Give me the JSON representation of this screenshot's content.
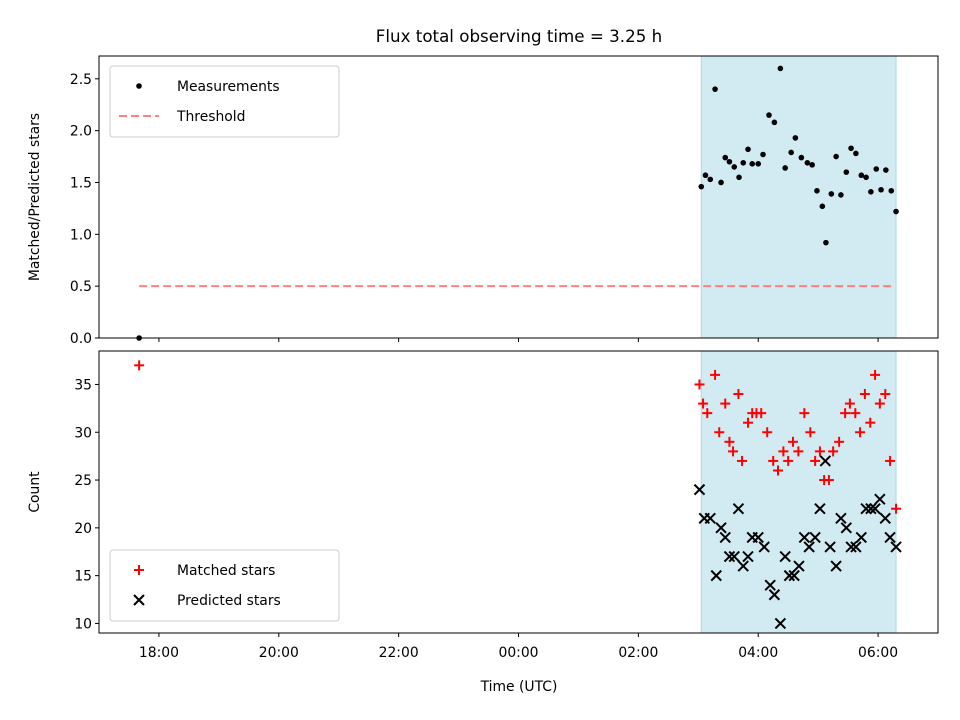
{
  "chart_data": {
    "title": "Flux total observing time = 3.25 h",
    "xlabel": "Time (UTC)",
    "x_unit": "hours after 17:00 UTC",
    "xlim": [
      17.0,
      31.0
    ],
    "x_ticks": [
      {
        "value": 18,
        "label": "18:00"
      },
      {
        "value": 20,
        "label": "20:00"
      },
      {
        "value": 22,
        "label": "22:00"
      },
      {
        "value": 24,
        "label": "00:00"
      },
      {
        "value": 26,
        "label": "02:00"
      },
      {
        "value": 28,
        "label": "04:00"
      },
      {
        "value": 30,
        "label": "06:00"
      }
    ],
    "shaded_span": {
      "x": [
        27.05,
        30.3
      ],
      "color": "#add8e6"
    },
    "panels": [
      {
        "id": "ratio",
        "type": "scatter",
        "ylabel": "Matched/Predicted stars",
        "ylim": [
          0,
          2.72
        ],
        "y_ticks": [
          0.0,
          0.5,
          1.0,
          1.5,
          2.0,
          2.5
        ],
        "y_tick_labels": [
          "0.0",
          "0.5",
          "1.0",
          "1.5",
          "2.0",
          "2.5"
        ],
        "legend": {
          "position": "top-left",
          "entries": [
            "Measurements",
            "Threshold"
          ]
        },
        "threshold": {
          "name": "Threshold",
          "value": 0.5,
          "x": [
            17.67,
            30.25
          ],
          "color": "#ff8080",
          "style": "dashed"
        },
        "series": [
          {
            "name": "Measurements",
            "marker": "dot",
            "color": "#000000",
            "points": [
              [
                17.67,
                0.0
              ],
              [
                27.05,
                1.46
              ],
              [
                27.12,
                1.57
              ],
              [
                27.2,
                1.53
              ],
              [
                27.28,
                2.4
              ],
              [
                27.38,
                1.5
              ],
              [
                27.45,
                1.74
              ],
              [
                27.52,
                1.7
              ],
              [
                27.6,
                1.65
              ],
              [
                27.68,
                1.55
              ],
              [
                27.75,
                1.69
              ],
              [
                27.83,
                1.82
              ],
              [
                27.9,
                1.68
              ],
              [
                28.0,
                1.68
              ],
              [
                28.08,
                1.77
              ],
              [
                28.18,
                2.15
              ],
              [
                28.27,
                2.08
              ],
              [
                28.37,
                2.6
              ],
              [
                28.45,
                1.64
              ],
              [
                28.55,
                1.79
              ],
              [
                28.62,
                1.93
              ],
              [
                28.72,
                1.74
              ],
              [
                28.82,
                1.69
              ],
              [
                28.9,
                1.67
              ],
              [
                28.98,
                1.42
              ],
              [
                29.07,
                1.27
              ],
              [
                29.13,
                0.92
              ],
              [
                29.22,
                1.39
              ],
              [
                29.3,
                1.75
              ],
              [
                29.38,
                1.38
              ],
              [
                29.47,
                1.6
              ],
              [
                29.55,
                1.83
              ],
              [
                29.63,
                1.78
              ],
              [
                29.72,
                1.57
              ],
              [
                29.8,
                1.55
              ],
              [
                29.88,
                1.41
              ],
              [
                29.97,
                1.63
              ],
              [
                30.05,
                1.43
              ],
              [
                30.13,
                1.62
              ],
              [
                30.22,
                1.42
              ],
              [
                30.3,
                1.22
              ]
            ]
          }
        ]
      },
      {
        "id": "counts",
        "type": "scatter",
        "ylabel": "Count",
        "ylim": [
          9.0,
          38.5
        ],
        "y_ticks": [
          10,
          15,
          20,
          25,
          30,
          35
        ],
        "y_tick_labels": [
          "10",
          "15",
          "20",
          "25",
          "30",
          "35"
        ],
        "legend": {
          "position": "bottom-left",
          "entries": [
            "Matched stars",
            "Predicted stars"
          ]
        },
        "series": [
          {
            "name": "Matched stars",
            "marker": "plus",
            "color": "#ff0000",
            "points": [
              [
                17.67,
                37
              ],
              [
                27.02,
                35
              ],
              [
                27.08,
                33
              ],
              [
                27.15,
                32
              ],
              [
                27.28,
                36
              ],
              [
                27.35,
                30
              ],
              [
                27.45,
                33
              ],
              [
                27.52,
                29
              ],
              [
                27.58,
                28
              ],
              [
                27.67,
                34
              ],
              [
                27.73,
                27
              ],
              [
                27.83,
                31
              ],
              [
                27.9,
                32
              ],
              [
                27.97,
                32
              ],
              [
                28.05,
                32
              ],
              [
                28.15,
                30
              ],
              [
                28.25,
                27
              ],
              [
                28.33,
                26
              ],
              [
                28.42,
                28
              ],
              [
                28.5,
                27
              ],
              [
                28.58,
                29
              ],
              [
                28.67,
                28
              ],
              [
                28.77,
                32
              ],
              [
                28.87,
                30
              ],
              [
                28.95,
                27
              ],
              [
                29.03,
                28
              ],
              [
                29.1,
                25
              ],
              [
                29.18,
                25
              ],
              [
                29.25,
                28
              ],
              [
                29.35,
                29
              ],
              [
                29.45,
                32
              ],
              [
                29.53,
                33
              ],
              [
                29.62,
                32
              ],
              [
                29.7,
                30
              ],
              [
                29.78,
                34
              ],
              [
                29.87,
                31
              ],
              [
                29.95,
                36
              ],
              [
                30.03,
                33
              ],
              [
                30.12,
                34
              ],
              [
                30.2,
                27
              ],
              [
                30.3,
                22
              ]
            ]
          },
          {
            "name": "Predicted stars",
            "marker": "x",
            "color": "#000000",
            "points": [
              [
                27.02,
                24
              ],
              [
                27.1,
                21
              ],
              [
                27.2,
                21
              ],
              [
                27.3,
                15
              ],
              [
                27.38,
                20
              ],
              [
                27.45,
                19
              ],
              [
                27.52,
                17
              ],
              [
                27.6,
                17
              ],
              [
                27.67,
                22
              ],
              [
                27.75,
                16
              ],
              [
                27.83,
                17
              ],
              [
                27.9,
                19
              ],
              [
                28.0,
                19
              ],
              [
                28.1,
                18
              ],
              [
                28.2,
                14
              ],
              [
                28.27,
                13
              ],
              [
                28.37,
                10
              ],
              [
                28.45,
                17
              ],
              [
                28.52,
                15
              ],
              [
                28.6,
                15
              ],
              [
                28.68,
                16
              ],
              [
                28.77,
                19
              ],
              [
                28.85,
                18
              ],
              [
                28.95,
                19
              ],
              [
                29.03,
                22
              ],
              [
                29.12,
                27
              ],
              [
                29.2,
                18
              ],
              [
                29.3,
                16
              ],
              [
                29.38,
                21
              ],
              [
                29.47,
                20
              ],
              [
                29.55,
                18
              ],
              [
                29.63,
                18
              ],
              [
                29.72,
                19
              ],
              [
                29.8,
                22
              ],
              [
                29.88,
                22
              ],
              [
                29.95,
                22
              ],
              [
                30.03,
                23
              ],
              [
                30.12,
                21
              ],
              [
                30.2,
                19
              ],
              [
                30.3,
                18
              ]
            ]
          }
        ]
      }
    ]
  }
}
